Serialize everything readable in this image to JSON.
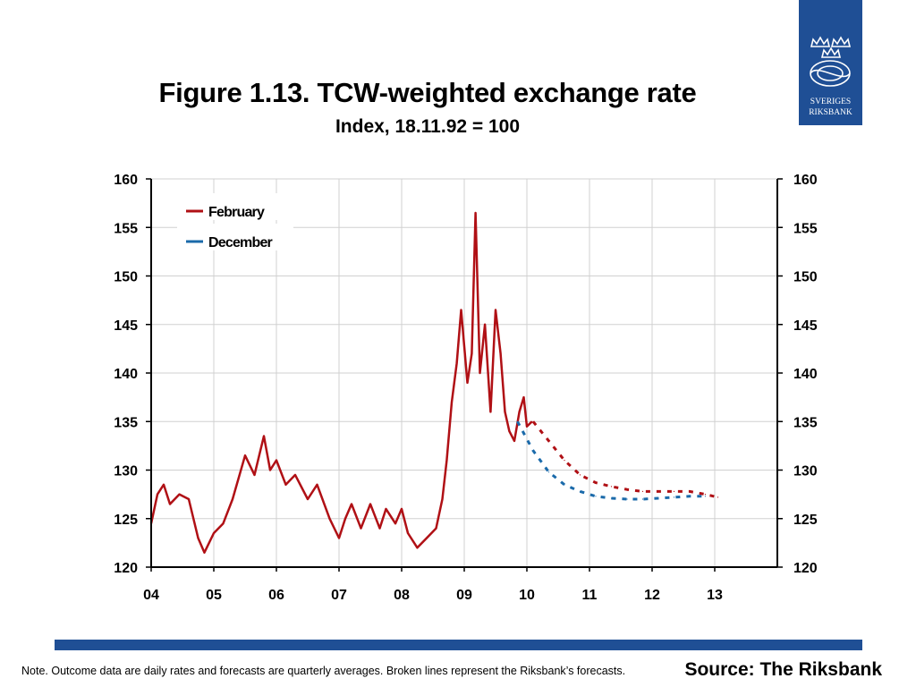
{
  "header": {
    "title": "Figure 1.13. TCW-weighted exchange rate",
    "subtitle": "Index, 18.11.92 = 100"
  },
  "logo": {
    "line1": "SVERIGES",
    "line2": "RIKSBANK",
    "icon": "crowns-emblem-icon",
    "color": "#1f4f95"
  },
  "footer": {
    "note": "Note. Outcome data are daily rates and forecasts are quarterly averages. Broken lines represent the Riksbank’s forecasts.",
    "source": "Source: The Riksbank",
    "bar_color": "#1f4f95"
  },
  "chart_data": {
    "type": "line",
    "title": "Figure 1.13. TCW-weighted exchange rate",
    "subtitle": "Index, 18.11.92 = 100",
    "xlim": [
      2004,
      2014
    ],
    "ylim": [
      120,
      160
    ],
    "x_ticks": [
      "04",
      "05",
      "06",
      "07",
      "08",
      "09",
      "10",
      "11",
      "12",
      "13"
    ],
    "y_ticks": [
      "120",
      "125",
      "130",
      "135",
      "140",
      "145",
      "150",
      "155",
      "160"
    ],
    "grid": true,
    "legend": {
      "position": "top-left",
      "entries": [
        "February",
        "December"
      ]
    },
    "series": [
      {
        "name": "February",
        "color": "#b01015",
        "style": "solid",
        "x": [
          2004.0,
          2004.1,
          2004.2,
          2004.3,
          2004.45,
          2004.6,
          2004.75,
          2004.85,
          2005.0,
          2005.15,
          2005.3,
          2005.5,
          2005.65,
          2005.8,
          2005.9,
          2006.0,
          2006.15,
          2006.3,
          2006.5,
          2006.65,
          2006.85,
          2007.0,
          2007.1,
          2007.2,
          2007.35,
          2007.5,
          2007.65,
          2007.75,
          2007.9,
          2008.0,
          2008.1,
          2008.25,
          2008.4,
          2008.55,
          2008.65,
          2008.72,
          2008.8,
          2008.88,
          2008.95,
          2009.05,
          2009.12,
          2009.18,
          2009.25,
          2009.33,
          2009.42,
          2009.5,
          2009.58,
          2009.65,
          2009.72,
          2009.8,
          2009.88,
          2009.95,
          2010.0,
          2010.08
        ],
        "y": [
          124.5,
          127.5,
          128.5,
          126.5,
          127.5,
          127.0,
          123.0,
          121.5,
          123.5,
          124.5,
          127.0,
          131.5,
          129.5,
          133.5,
          130.0,
          131.0,
          128.5,
          129.5,
          127.0,
          128.5,
          125.0,
          123.0,
          125.0,
          126.5,
          124.0,
          126.5,
          124.0,
          126.0,
          124.5,
          126.0,
          123.5,
          122.0,
          123.0,
          124.0,
          127.0,
          131.0,
          137.0,
          141.0,
          146.5,
          139.0,
          142.0,
          156.5,
          140.0,
          145.0,
          136.0,
          146.5,
          142.0,
          136.0,
          134.0,
          133.0,
          136.0,
          137.5,
          134.5,
          135.0
        ]
      },
      {
        "name": "February forecast",
        "color": "#b01015",
        "style": "dashed",
        "x": [
          2010.1,
          2010.35,
          2010.6,
          2010.85,
          2011.1,
          2011.35,
          2011.6,
          2011.85,
          2012.1,
          2012.35,
          2012.6,
          2012.85,
          2013.05
        ],
        "y": [
          135.0,
          133.0,
          131.0,
          129.5,
          128.7,
          128.3,
          128.0,
          127.8,
          127.8,
          127.8,
          127.8,
          127.5,
          127.2
        ]
      },
      {
        "name": "December forecast",
        "color": "#1a6aaa",
        "style": "dashed",
        "x": [
          2009.85,
          2010.1,
          2010.35,
          2010.6,
          2010.85,
          2011.1,
          2011.35,
          2011.6,
          2011.85,
          2012.1,
          2012.35,
          2012.6,
          2012.85
        ],
        "y": [
          135.0,
          132.0,
          129.8,
          128.5,
          127.8,
          127.3,
          127.1,
          127.0,
          127.0,
          127.1,
          127.2,
          127.3,
          127.3
        ]
      }
    ]
  }
}
